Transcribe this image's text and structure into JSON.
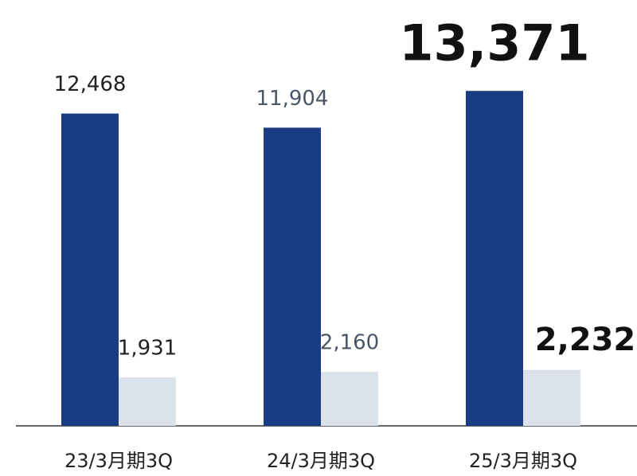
{
  "chart_data": {
    "type": "bar",
    "categories": [
      "23/3月期3Q",
      "24/3月期3Q",
      "25/3月期3Q"
    ],
    "series": [
      {
        "color": "#1a3c82",
        "values": [
          12468,
          11904,
          13371
        ],
        "value_labels": [
          "12,468",
          "11,904",
          "13,371"
        ]
      },
      {
        "color": "#dce2eb",
        "values": [
          1931,
          2160,
          2232
        ],
        "value_labels": [
          "1,931",
          "2,160",
          "2,232"
        ]
      }
    ],
    "ylim": [
      0,
      17000
    ]
  }
}
